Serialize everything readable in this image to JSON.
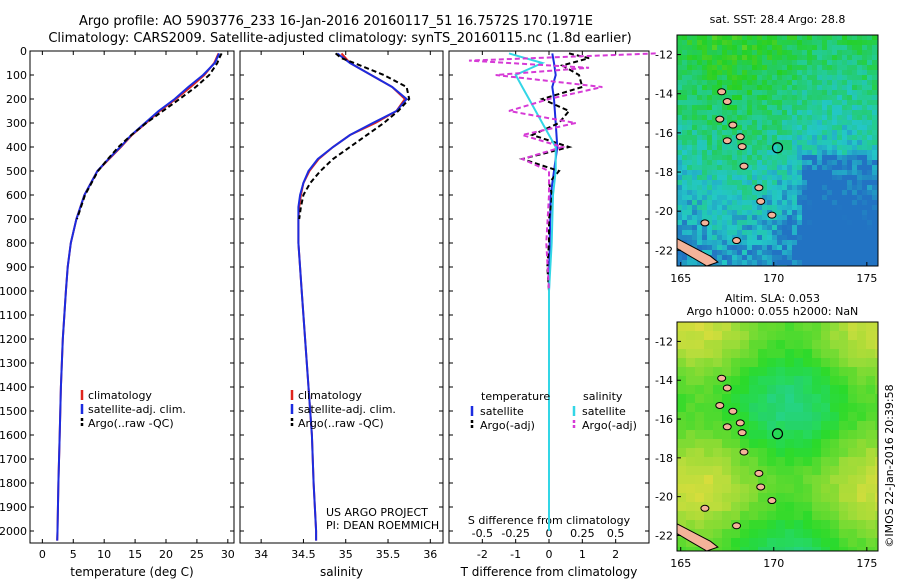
{
  "header": {
    "line1": "Argo profile: AO 5903776_233 16-Jan-2016 20160117_51 16.7572S 170.1971E",
    "line2": "Climatology: CARS2009. Satellite-adjusted climatology: synTS_20160115.nc (1.8d earlier)"
  },
  "credits": {
    "line1": "US ARGO PROJECT",
    "line2": "PI: DEAN ROEMMICH",
    "watermark": "©IMOS 22-Jan-2016 20:39:58"
  },
  "chart_data": [
    {
      "type": "line",
      "id": "temperature",
      "xlabel": "temperature (deg C)",
      "xlim": [
        -2,
        31
      ],
      "ylim": [
        2050,
        0
      ],
      "xticks": [
        0,
        5,
        10,
        15,
        20,
        25,
        30
      ],
      "yticks": [
        0,
        100,
        200,
        300,
        400,
        500,
        600,
        700,
        800,
        900,
        1000,
        1100,
        1200,
        1300,
        1400,
        1500,
        1600,
        1700,
        1800,
        1900,
        2000
      ],
      "legend": [
        "climatology",
        "satellite-adj. clim.",
        "Argo(..raw -QC)"
      ],
      "series": [
        {
          "name": "climatology",
          "color": "#e0241c",
          "style": "solid",
          "depth": [
            10,
            50,
            100,
            150,
            200,
            250,
            300,
            350,
            400,
            450,
            500,
            600,
            700,
            800,
            900,
            1000,
            1200,
            1400,
            1600,
            1800,
            2000,
            2040
          ],
          "values": [
            28.5,
            27.8,
            26.2,
            24.0,
            21.6,
            19.0,
            16.8,
            14.5,
            12.7,
            10.8,
            8.9,
            6.8,
            5.5,
            4.6,
            4.1,
            3.8,
            3.3,
            3.0,
            2.8,
            2.6,
            2.45,
            2.4
          ]
        },
        {
          "name": "satellite-adj. clim.",
          "color": "#1c2ce0",
          "style": "solid",
          "depth": [
            10,
            50,
            100,
            150,
            200,
            250,
            300,
            350,
            400,
            450,
            500,
            600,
            700,
            800,
            900,
            1000,
            1200,
            1400,
            1600,
            1800,
            2000,
            2040
          ],
          "values": [
            28.6,
            27.9,
            26.0,
            23.6,
            21.4,
            18.8,
            16.6,
            14.4,
            12.6,
            10.7,
            8.9,
            6.8,
            5.5,
            4.6,
            4.1,
            3.8,
            3.3,
            3.0,
            2.8,
            2.6,
            2.45,
            2.4
          ]
        },
        {
          "name": "Argo(..raw -QC)",
          "color": "#000000",
          "style": "dashed",
          "depth": [
            10,
            30,
            50,
            100,
            150,
            200,
            250,
            300,
            350,
            400,
            450,
            500,
            600,
            700
          ],
          "values": [
            29.0,
            28.6,
            28.3,
            27.0,
            24.8,
            22.2,
            19.5,
            16.8,
            14.4,
            12.3,
            10.6,
            9.0,
            6.9,
            5.6
          ]
        }
      ]
    },
    {
      "type": "line",
      "id": "salinity",
      "xlabel": "salinity",
      "xlim": [
        33.75,
        36.15
      ],
      "ylim": [
        2050,
        0
      ],
      "xticks": [
        34,
        34.5,
        35,
        35.5,
        36
      ],
      "legend": [
        "climatology",
        "satellite-adj. clim.",
        "Argo(..raw -QC)"
      ],
      "series": [
        {
          "name": "climatology",
          "color": "#e0241c",
          "style": "solid",
          "depth": [
            10,
            50,
            100,
            150,
            200,
            250,
            300,
            350,
            400,
            450,
            500,
            550,
            600,
            650,
            700,
            800,
            1000,
            1200,
            1400,
            1600,
            1800,
            2000,
            2040
          ],
          "values": [
            34.95,
            35.05,
            35.3,
            35.55,
            35.7,
            35.6,
            35.35,
            35.05,
            34.85,
            34.68,
            34.57,
            34.5,
            34.47,
            34.45,
            34.44,
            34.44,
            34.48,
            34.52,
            34.56,
            34.6,
            34.62,
            34.65,
            34.65
          ]
        },
        {
          "name": "satellite-adj. clim.",
          "color": "#1c2ce0",
          "style": "solid",
          "depth": [
            10,
            50,
            100,
            150,
            200,
            250,
            300,
            350,
            400,
            450,
            500,
            550,
            600,
            650,
            700,
            800,
            1000,
            1200,
            1400,
            1600,
            1800,
            2000,
            2040
          ],
          "values": [
            34.9,
            35.05,
            35.3,
            35.55,
            35.72,
            35.6,
            35.32,
            35.05,
            34.85,
            34.67,
            34.56,
            34.5,
            34.46,
            34.44,
            34.44,
            34.44,
            34.48,
            34.52,
            34.56,
            34.6,
            34.62,
            34.65,
            34.65
          ]
        },
        {
          "name": "Argo(..raw -QC)",
          "color": "#000000",
          "style": "dashed",
          "depth": [
            10,
            30,
            50,
            100,
            150,
            200,
            250,
            300,
            350,
            400,
            450,
            500,
            550,
            600,
            650,
            700
          ],
          "values": [
            34.88,
            34.95,
            35.1,
            35.45,
            35.72,
            35.75,
            35.62,
            35.45,
            35.25,
            35.05,
            34.85,
            34.7,
            34.58,
            34.5,
            34.47,
            34.45
          ]
        }
      ]
    },
    {
      "type": "line",
      "id": "difference",
      "xlabel": "T difference from climatology",
      "xlabel2": "S difference from climatology",
      "xlim": [
        -3,
        3
      ],
      "ylim": [
        2050,
        0
      ],
      "xticks": [
        -2,
        -1,
        0,
        1,
        2
      ],
      "xticks_s": [
        "-0.5",
        "-0.25",
        "0",
        "0.25",
        "0.5"
      ],
      "legend_headers": [
        "temperature",
        "salinity"
      ],
      "legend": [
        "satellite",
        "Argo(-adj)",
        "satellite",
        "Argo(-adj)"
      ],
      "series": [
        {
          "name": "satellite",
          "quantity": "temperature",
          "color": "#1c2ce0",
          "style": "solid",
          "depth": [
            10,
            50,
            100,
            150,
            200,
            300,
            400,
            500,
            600,
            800,
            1000,
            1200,
            1500,
            2000
          ],
          "values": [
            0.1,
            0.15,
            0.2,
            0.1,
            0.15,
            0.2,
            0.25,
            0.15,
            0.05,
            0.02,
            0.0,
            0.0,
            0.0,
            0.0
          ]
        },
        {
          "name": "Argo(-adj)",
          "quantity": "temperature",
          "color": "#000000",
          "style": "dashed",
          "depth": [
            10,
            30,
            60,
            100,
            150,
            200,
            250,
            300,
            350,
            400,
            450,
            500,
            550,
            600,
            650,
            700,
            800,
            900,
            1000,
            1100
          ],
          "values": [
            0.6,
            1.2,
            0.4,
            0.9,
            1.0,
            -0.2,
            0.6,
            0.3,
            -0.5,
            0.6,
            -0.8,
            0.3,
            0.0,
            0.1,
            0.05,
            0.0,
            0.0,
            -0.05,
            0.0,
            0.0
          ]
        },
        {
          "name": "satellite",
          "quantity": "salinity",
          "color": "#33d6e6",
          "style": "solid",
          "depth": [
            10,
            50,
            100,
            150,
            200,
            300,
            400,
            500,
            600,
            800,
            1000,
            1200,
            1500,
            2000
          ],
          "values": [
            -0.3,
            -0.05,
            -0.25,
            -0.2,
            -0.15,
            -0.05,
            0.05,
            0.05,
            0.03,
            0.02,
            0.0,
            0.0,
            0.0,
            0.0
          ]
        },
        {
          "name": "Argo(-adj)",
          "quantity": "salinity",
          "color": "#d63ad6",
          "style": "dashed",
          "depth": [
            10,
            40,
            70,
            100,
            150,
            200,
            250,
            300,
            350,
            400,
            450,
            500,
            600,
            800,
            1000
          ],
          "values": [
            0.8,
            -0.6,
            0.3,
            -0.4,
            0.4,
            0.0,
            -0.3,
            0.2,
            -0.2,
            0.1,
            -0.2,
            0.0,
            0.0,
            -0.02,
            0.0
          ]
        }
      ]
    },
    {
      "type": "heatmap",
      "id": "sst-map",
      "title": "sat. SST: 28.4 Argo: 28.8",
      "xlim": [
        164.8,
        175.6
      ],
      "ylim": [
        -22.8,
        -11
      ],
      "xticks": [
        165,
        170,
        175
      ],
      "yticks": [
        -12,
        -14,
        -16,
        -18,
        -20,
        -22
      ],
      "marker": {
        "lon": 170.2,
        "lat": -16.76
      }
    },
    {
      "type": "heatmap",
      "id": "sla-map",
      "title": "Altim. SLA: 0.053",
      "subtitle": "Argo h1000: 0.055 h2000: NaN",
      "xlim": [
        164.8,
        175.6
      ],
      "ylim": [
        -22.8,
        -11
      ],
      "xticks": [
        165,
        170,
        175
      ],
      "yticks": [
        -12,
        -14,
        -16,
        -18,
        -20,
        -22
      ],
      "marker": {
        "lon": 170.2,
        "lat": -16.76
      }
    }
  ]
}
